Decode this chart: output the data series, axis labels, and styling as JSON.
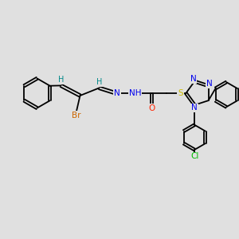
{
  "bg_color": "#e0e0e0",
  "bond_color": "#000000",
  "bond_width": 1.3,
  "atom_colors": {
    "N": "#0000ee",
    "O": "#ff2200",
    "S": "#ccbb00",
    "Br": "#cc6600",
    "Cl": "#00bb00",
    "H": "#008888",
    "C": "#000000"
  },
  "font_size": 7.5,
  "fig_width": 3.0,
  "fig_height": 3.0,
  "dpi": 100,
  "xlim": [
    0,
    10
  ],
  "ylim": [
    0,
    10
  ]
}
